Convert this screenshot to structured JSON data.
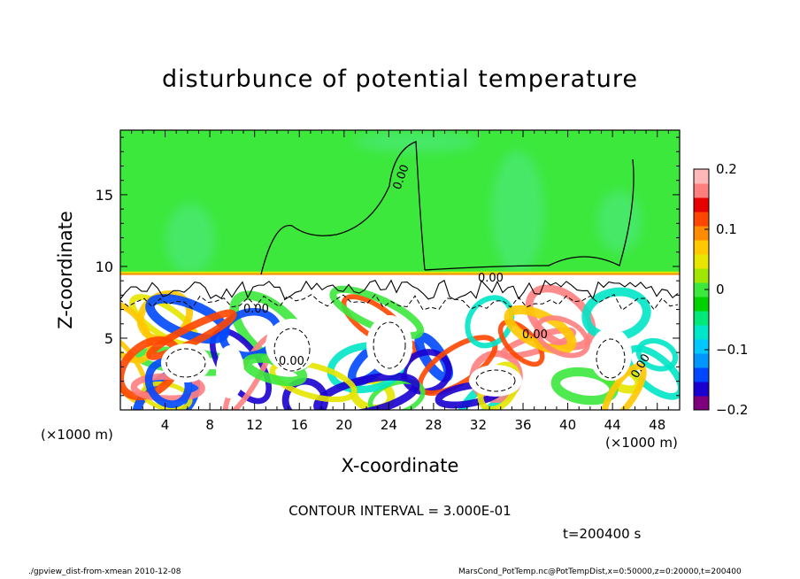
{
  "chart_data": {
    "type": "heatmap",
    "title": "disturbunce of potential temperature",
    "xlabel": "X-coordinate",
    "ylabel": "Z-coordinate",
    "x_unit": "(×1000 m)",
    "xlim": [
      0,
      50
    ],
    "ylim": [
      0,
      19.5
    ],
    "x_ticks": [
      4,
      8,
      12,
      16,
      20,
      24,
      28,
      32,
      36,
      40,
      44,
      48
    ],
    "y_ticks": [
      5,
      10,
      15
    ],
    "colorbar": {
      "range": [
        -0.2,
        0.2
      ],
      "tick_labels": [
        "0.2",
        "0.1",
        "0",
        "−0.1",
        "−0.2"
      ],
      "tick_values": [
        0.2,
        0.1,
        0,
        -0.1,
        -0.2
      ],
      "colors": [
        "#7f007f",
        "#1a00d0",
        "#0048ff",
        "#0096ff",
        "#00c8ff",
        "#00e6c8",
        "#00e87a",
        "#00d200",
        "#3ce83c",
        "#a0e600",
        "#e6e600",
        "#ffc800",
        "#ff8c00",
        "#ff4600",
        "#e60000",
        "#ff7f7f",
        "#ffb8b8"
      ]
    },
    "contour_labels": [
      "0.00",
      "0.00",
      "0.00",
      "0.00",
      "0.00",
      "0.00"
    ],
    "contour_interval_text": "CONTOUR INTERVAL = 3.000E-01",
    "time_text": "t=200400 s"
  },
  "footer": {
    "left": "./gpview_dist-from-xmean   2010-12-08",
    "right": "MarsCond_PotTemp.nc@PotTempDist,x=0:50000,z=0:20000,t=200400"
  }
}
